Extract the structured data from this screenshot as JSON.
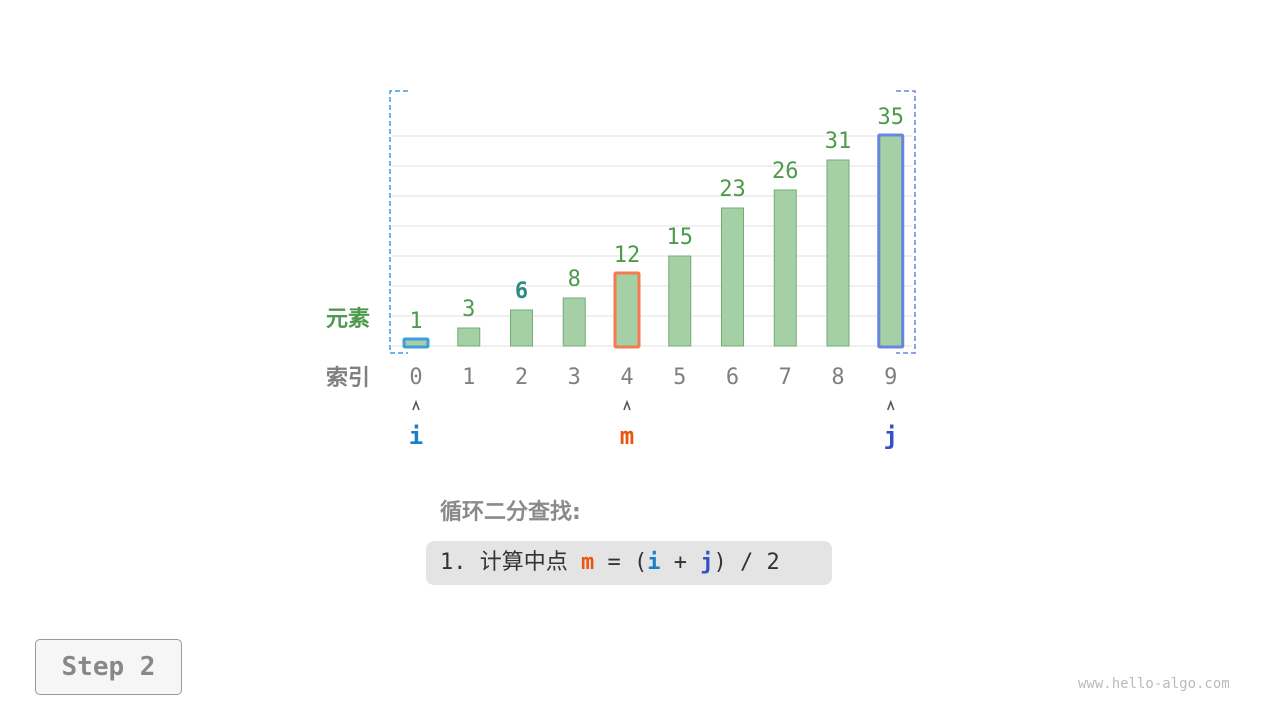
{
  "labels": {
    "element": "元素",
    "index": "索引"
  },
  "chart_data": {
    "type": "bar",
    "categories": [
      "0",
      "1",
      "2",
      "3",
      "4",
      "5",
      "6",
      "7",
      "8",
      "9"
    ],
    "values": [
      1,
      3,
      6,
      8,
      12,
      15,
      23,
      26,
      31,
      35
    ],
    "ylim": [
      0,
      40
    ],
    "grid": true,
    "target_index": 2,
    "highlights": {
      "i": 0,
      "m": 4,
      "j": 9
    }
  },
  "pointers": [
    {
      "label": "i",
      "index": 0,
      "color": "#1a7fc7"
    },
    {
      "label": "m",
      "index": 4,
      "color": "#e8560f"
    },
    {
      "label": "j",
      "index": 9,
      "color": "#3350c9"
    }
  ],
  "colors": {
    "bar": "#a5cfa5",
    "bar_stroke": "#73ac73",
    "value_text": "#4d9a4d",
    "target_text": "#2e8b80",
    "i": "#3c9ede",
    "m": "#f47a50",
    "j": "#6a85de",
    "grid": "#e2e2e2",
    "index_text": "#808080"
  },
  "title": "循环二分查找:",
  "formula": {
    "prefix": "1. 计算中点 ",
    "m": "m",
    "eq": " = (",
    "i": "i",
    "plus": " + ",
    "j": "j",
    "suffix": ") / 2"
  },
  "step": "Step 2",
  "site": "www.hello-algo.com"
}
